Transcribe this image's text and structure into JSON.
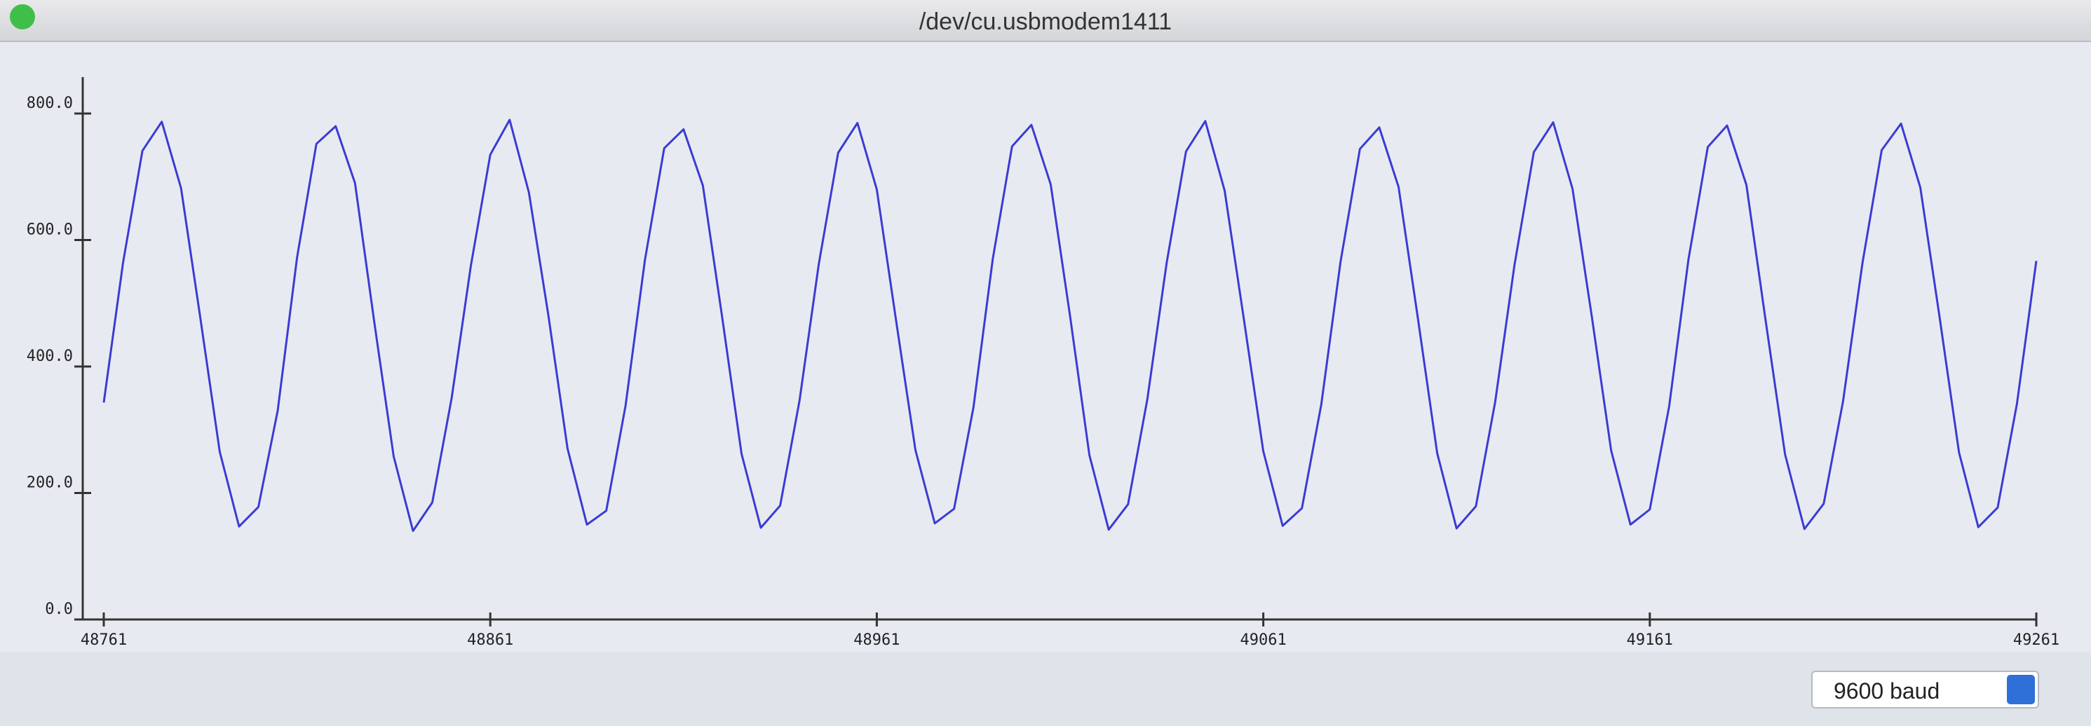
{
  "window_title": "/dev/cu.usbmodem1411",
  "baud": "9600 baud",
  "chart_data": {
    "type": "line",
    "x": [
      48761,
      48766,
      48771,
      48776,
      48781,
      48786,
      48791,
      48796,
      48801,
      48806,
      48811,
      48816,
      48821,
      48826,
      48831,
      48836,
      48841,
      48846,
      48851,
      48856,
      48861,
      48866,
      48871,
      48876,
      48881,
      48886,
      48891,
      48896,
      48901,
      48906,
      48911,
      48916,
      48921,
      48926,
      48931,
      48936,
      48941,
      48946,
      48951,
      48956,
      48961,
      48966,
      48971,
      48976,
      48981,
      48986,
      48991,
      48996,
      49001,
      49006,
      49011,
      49016,
      49021,
      49026,
      49031,
      49036,
      49041,
      49046,
      49051,
      49056,
      49061,
      49066,
      49071,
      49076,
      49081,
      49086,
      49091,
      49096,
      49101,
      49106,
      49111,
      49116,
      49121,
      49126,
      49131,
      49136,
      49141,
      49146,
      49151,
      49156,
      49161,
      49166,
      49171,
      49176,
      49181,
      49186,
      49191,
      49196,
      49201,
      49206,
      49211,
      49216,
      49221,
      49226,
      49231,
      49236,
      49241,
      49246,
      49251,
      49256,
      49261
    ],
    "series": [
      {
        "color": "#3b3bd4",
        "values": [
          343,
          565,
          741,
          787,
          682,
          476,
          265,
          147,
          178,
          330,
          572,
          752,
          780,
          690,
          470,
          258,
          140,
          185,
          350,
          560,
          735,
          790,
          675,
          482,
          270,
          150,
          172,
          338,
          568,
          745,
          775,
          686,
          478,
          262,
          145,
          180,
          346,
          562,
          738,
          785,
          680,
          472,
          268,
          152,
          175,
          335,
          570,
          748,
          782,
          688,
          480,
          260,
          142,
          182,
          348,
          564,
          740,
          788,
          678,
          474,
          266,
          148,
          176,
          340,
          566,
          744,
          778,
          684,
          476,
          263,
          144,
          179,
          344,
          561,
          739,
          786,
          681,
          479,
          267,
          150,
          174,
          337,
          569,
          747,
          781,
          687,
          471,
          261,
          143,
          183,
          345,
          563,
          742,
          784,
          683,
          477,
          264,
          146,
          177,
          341,
          567
        ]
      }
    ],
    "xlim": [
      48761,
      49261
    ],
    "xticks": [
      48761,
      48861,
      48961,
      49061,
      49161,
      49261
    ],
    "ylim": [
      0,
      800
    ],
    "yticks": [
      {
        "value": 0,
        "label": "0.0"
      },
      {
        "value": 200,
        "label": "200.0"
      },
      {
        "value": 400,
        "label": "400.0"
      },
      {
        "value": 600,
        "label": "600.0"
      },
      {
        "value": 800,
        "label": "800.0"
      }
    ]
  }
}
